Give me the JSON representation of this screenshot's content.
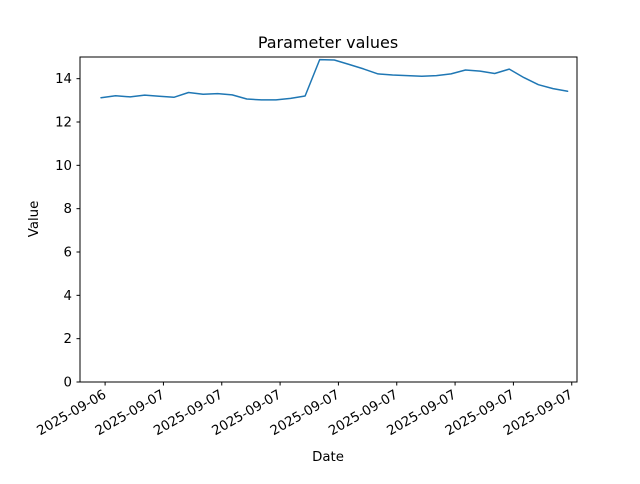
{
  "chart_data": {
    "type": "line",
    "title": "Parameter values",
    "xlabel": "Date",
    "ylabel": "Value",
    "x_tick_labels": [
      "2025-09-06",
      "2025-09-07",
      "2025-09-07",
      "2025-09-07",
      "2025-09-07",
      "2025-09-07",
      "2025-09-07",
      "2025-09-07",
      "2025-09-07"
    ],
    "x_tick_rotation_deg": 30,
    "y_tick_values": [
      0,
      2,
      4,
      6,
      8,
      10,
      12,
      14
    ],
    "ylim": [
      0,
      15
    ],
    "grid": false,
    "line_color": "#1f77b4",
    "axis_color": "#000000",
    "values": [
      13.12,
      13.21,
      13.16,
      13.24,
      13.19,
      13.14,
      13.36,
      13.28,
      13.31,
      13.25,
      13.06,
      13.02,
      13.02,
      13.09,
      13.2,
      14.88,
      14.86,
      14.66,
      14.45,
      14.22,
      14.17,
      14.14,
      14.11,
      14.14,
      14.22,
      14.4,
      14.35,
      14.24,
      14.44,
      14.05,
      13.72,
      13.54,
      13.42
    ]
  }
}
